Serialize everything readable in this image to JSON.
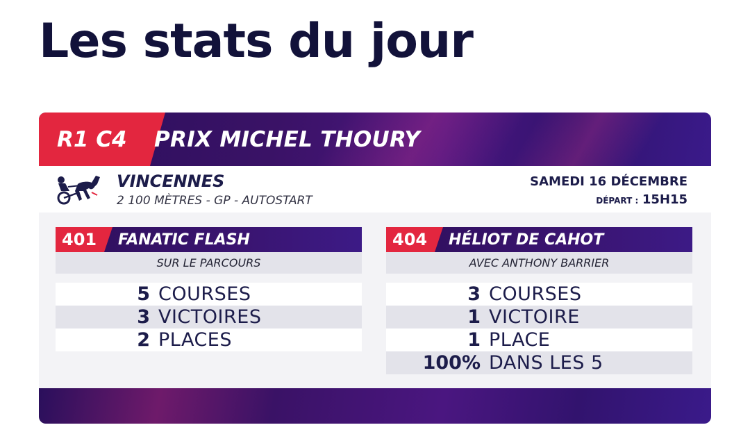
{
  "page": {
    "title": "Les stats du jour"
  },
  "race": {
    "code": "R1 C4",
    "name": "PRIX MICHEL THOURY",
    "venue": "VINCENNES",
    "details": "2 100 MÈTRES - GP - AUTOSTART",
    "date": "SAMEDI 16 DÉCEMBRE",
    "departure_label": "DÉPART :",
    "departure_time": "15H15"
  },
  "horses": [
    {
      "number": "401",
      "name": "FANATIC FLASH",
      "subtitle": "SUR LE PARCOURS",
      "stats": [
        {
          "value": "5",
          "label": "COURSES"
        },
        {
          "value": "3",
          "label": "VICTOIRES"
        },
        {
          "value": "2",
          "label": "PLACES"
        }
      ]
    },
    {
      "number": "404",
      "name": "HÉLIOT DE CAHOT",
      "subtitle": "AVEC ANTHONY BARRIER",
      "stats": [
        {
          "value": "3",
          "label": "COURSES"
        },
        {
          "value": "1",
          "label": "VICTOIRE"
        },
        {
          "value": "1",
          "label": "PLACE"
        },
        {
          "value": "100%",
          "label": "DANS LES 5"
        }
      ]
    }
  ],
  "colors": {
    "accent": "#e3263f",
    "navy": "#1c1c4a",
    "purple": "#3a1266"
  },
  "icons": {
    "venue": "trotting-sulky-icon"
  }
}
